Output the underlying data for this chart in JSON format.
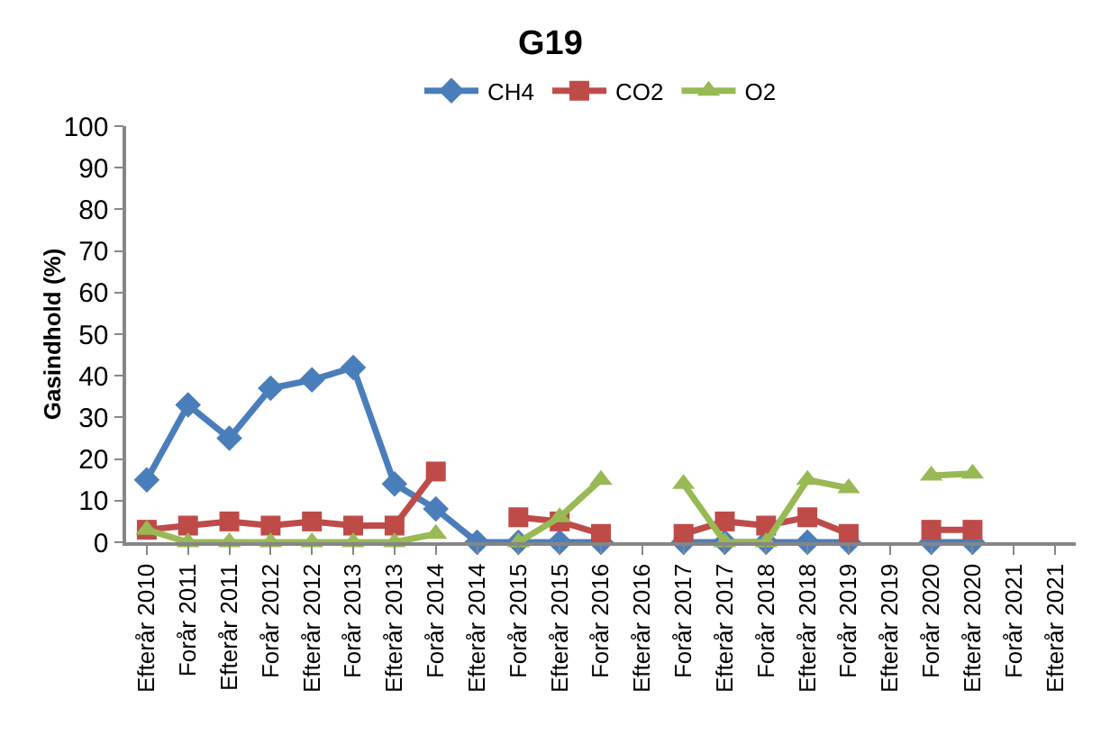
{
  "chart_data": {
    "type": "line",
    "title": "G19",
    "ylabel": "Gasindhold (%)",
    "categories": [
      "Efterår 2010",
      "Forår 2011",
      "Efterår 2011",
      "Forår 2012",
      "Efterår 2012",
      "Forår 2013",
      "Efterår 2013",
      "Forår 2014",
      "Efterår 2014",
      "Forår 2015",
      "Efterår 2015",
      "Forår 2016",
      "Efterår 2016",
      "Forår 2017",
      "Efterår 2017",
      "Forår 2018",
      "Efterår 2018",
      "Forår 2019",
      "Efterår 2019",
      "Forår 2020",
      "Efterår 2020",
      "Forår 2021",
      "Efterår 2021"
    ],
    "series": [
      {
        "name": "CH4",
        "color": "#4a7ebb",
        "marker": "diamond",
        "values": [
          15,
          33,
          25,
          37,
          39,
          42,
          14,
          8,
          0,
          0,
          0,
          0,
          null,
          0,
          0,
          0,
          0,
          0,
          null,
          0,
          0,
          null,
          null
        ]
      },
      {
        "name": "CO2",
        "color": "#be4b48",
        "marker": "square",
        "values": [
          3,
          4,
          5,
          4,
          5,
          4,
          4,
          17,
          null,
          6,
          5,
          2,
          null,
          2,
          5,
          4,
          6,
          2,
          null,
          3,
          3,
          null,
          null
        ]
      },
      {
        "name": "O2",
        "color": "#98b954",
        "marker": "triangle",
        "values": [
          3,
          0,
          0,
          0,
          0,
          0,
          0,
          2,
          null,
          0,
          6,
          15,
          null,
          14,
          0,
          0,
          15,
          13,
          null,
          16,
          16.5,
          null,
          null
        ]
      }
    ],
    "ylim": [
      0,
      100
    ],
    "yticks": [
      0,
      10,
      20,
      30,
      40,
      50,
      60,
      70,
      80,
      90,
      100
    ],
    "grid": false,
    "legend": "top",
    "line_style": "solid"
  }
}
